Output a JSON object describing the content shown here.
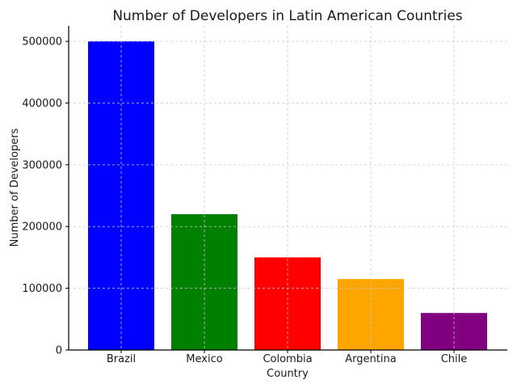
{
  "chart_data": {
    "type": "bar",
    "title": "Number of Developers in Latin American Countries",
    "xlabel": "Country",
    "ylabel": "Number of Developers",
    "categories": [
      "Brazil",
      "Mexico",
      "Colombia",
      "Argentina",
      "Chile"
    ],
    "values": [
      500000,
      220000,
      150000,
      115000,
      60000
    ],
    "colors": [
      "#0000ff",
      "#008000",
      "#ff0000",
      "#ffa500",
      "#800080"
    ],
    "ylim": [
      0,
      525000
    ],
    "yticks": [
      0,
      100000,
      200000,
      300000,
      400000,
      500000
    ],
    "ytick_labels": [
      "0",
      "100000",
      "200000",
      "300000",
      "400000",
      "500000"
    ],
    "grid": true
  }
}
